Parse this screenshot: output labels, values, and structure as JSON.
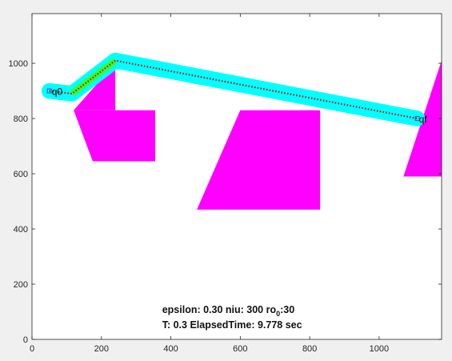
{
  "chart_data": {
    "type": "scatter",
    "xlim": [
      0,
      1180
    ],
    "ylim": [
      0,
      1180
    ],
    "x_ticks": [
      0,
      200,
      400,
      600,
      800,
      1000
    ],
    "y_ticks": [
      0,
      200,
      400,
      600,
      800,
      1000
    ],
    "tick_labels_x": [
      "0",
      "200",
      "400",
      "600",
      "800",
      "1000"
    ],
    "tick_labels_y": [
      "0",
      "200",
      "400",
      "600",
      "800",
      "1000"
    ],
    "grid": false,
    "legend": false,
    "colors": {
      "obstacle": "#ff00ff",
      "tube": "#00ffff",
      "segment_highlight": "#33ff33",
      "path": "#d01010",
      "marker": "#3050c0",
      "axes_bg": "#ffffff",
      "figure_bg": "#f0f0f0"
    },
    "obstacles": [
      [
        [
          120,
          830
        ],
        [
          355,
          830
        ],
        [
          355,
          645
        ],
        [
          175,
          645
        ]
      ],
      [
        [
          240,
          1000
        ],
        [
          240,
          830
        ],
        [
          120,
          830
        ]
      ],
      [
        [
          600,
          830
        ],
        [
          830,
          830
        ],
        [
          830,
          470
        ],
        [
          475,
          470
        ]
      ],
      [
        [
          1180,
          1010
        ],
        [
          1180,
          590
        ],
        [
          1070,
          590
        ]
      ]
    ],
    "path": [
      [
        50,
        900
      ],
      [
        115,
        890
      ],
      [
        240,
        1010
      ],
      [
        1110,
        800
      ]
    ],
    "green_segment": [
      [
        115,
        890
      ],
      [
        240,
        1010
      ]
    ],
    "tube_width": 45,
    "start": {
      "label": "q0",
      "point": [
        50,
        900
      ]
    },
    "goal": {
      "label": "qf",
      "point": [
        1110,
        800
      ]
    },
    "annotation1": {
      "prefix": "epsilon: 0.30 niu: 300 ro",
      "subscript": "0",
      "suffix": ":30",
      "position": [
        375,
        95
      ]
    },
    "annotation2": {
      "text": "T: 0.3 ElapsedTime: 9.778 sec",
      "position": [
        375,
        40
      ]
    }
  }
}
